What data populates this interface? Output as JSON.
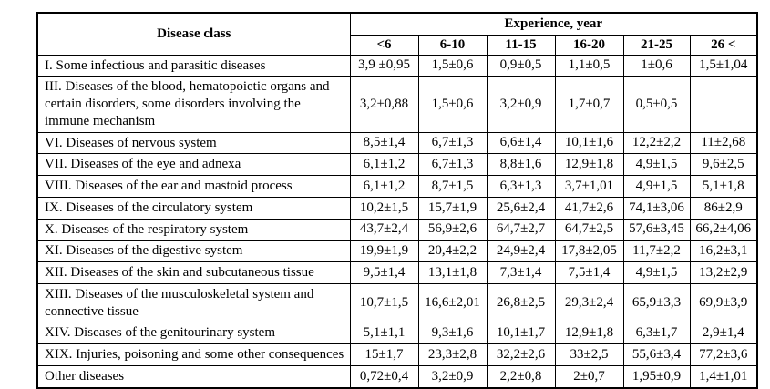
{
  "table": {
    "header": {
      "disease_class_label": "Disease class",
      "experience_group_label": "Experience, year",
      "experience_columns": [
        "<6",
        "6-10",
        "11-15",
        "16-20",
        "21-25",
        "26 <"
      ]
    },
    "rows": [
      {
        "disease_class": "I. Some infectious and parasitic diseases",
        "values": [
          "3,9 ±0,95",
          "1,5±0,6",
          "0,9±0,5",
          "1,1±0,5",
          "1±0,6",
          "1,5±1,04"
        ]
      },
      {
        "disease_class": "III. Diseases of the blood, hematopoietic organs and certain disorders, some disorders involving the immune mechanism",
        "values": [
          "3,2±0,88",
          "1,5±0,6",
          "3,2±0,9",
          "1,7±0,7",
          "0,5±0,5",
          ""
        ]
      },
      {
        "disease_class": "VI. Diseases of nervous system",
        "values": [
          "8,5±1,4",
          "6,7±1,3",
          "6,6±1,4",
          "10,1±1,6",
          "12,2±2,2",
          "11±2,68"
        ]
      },
      {
        "disease_class": "VII. Diseases of the eye and adnexa",
        "values": [
          "6,1±1,2",
          "6,7±1,3",
          "8,8±1,6",
          "12,9±1,8",
          "4,9±1,5",
          "9,6±2,5"
        ]
      },
      {
        "disease_class": "VIII. Diseases of the ear and mastoid process",
        "values": [
          "6,1±1,2",
          "8,7±1,5",
          "6,3±1,3",
          "3,7±1,01",
          "4,9±1,5",
          "5,1±1,8"
        ]
      },
      {
        "disease_class": "IX. Diseases of the circulatory system",
        "values": [
          "10,2±1,5",
          "15,7±1,9",
          "25,6±2,4",
          "41,7±2,6",
          "74,1±3,06",
          "86±2,9"
        ]
      },
      {
        "disease_class": "X. Diseases of the respiratory system",
        "values": [
          "43,7±2,4",
          "56,9±2,6",
          "64,7±2,7",
          "64,7±2,5",
          "57,6±3,45",
          "66,2±4,06"
        ]
      },
      {
        "disease_class": "XI. Diseases of the digestive system",
        "values": [
          "19,9±1,9",
          "20,4±2,2",
          "24,9±2,4",
          "17,8±2,05",
          "11,7±2,2",
          "16,2±3,1"
        ]
      },
      {
        "disease_class": "XII. Diseases of the skin and subcutaneous tissue",
        "values": [
          "9,5±1,4",
          "13,1±1,8",
          "7,3±1,4",
          "7,5±1,4",
          "4,9±1,5",
          "13,2±2,9"
        ]
      },
      {
        "disease_class": "XIII. Diseases of the musculoskeletal system and connective tissue",
        "values": [
          "10,7±1,5",
          "16,6±2,01",
          "26,8±2,5",
          "29,3±2,4",
          "65,9±3,3",
          "69,9±3,9"
        ]
      },
      {
        "disease_class": "XIV. Diseases of the genitourinary system",
        "values": [
          "5,1±1,1",
          "9,3±1,6",
          "10,1±1,7",
          "12,9±1,8",
          "6,3±1,7",
          "2,9±1,4"
        ]
      },
      {
        "disease_class": "XIX. Injuries, poisoning and some other consequences",
        "values": [
          "15±1,7",
          "23,3±2,8",
          "32,2±2,6",
          "33±2,5",
          "55,6±3,4",
          "77,2±3,6"
        ]
      },
      {
        "disease_class": "Other diseases",
        "values": [
          "0,72±0,4",
          "3,2±0,9",
          "2,2±0,8",
          "2±0,7",
          "1,95±0,9",
          "1,4±1,01"
        ]
      }
    ]
  },
  "colors": {
    "border": "#000000",
    "text": "#000000",
    "background": "#ffffff"
  }
}
